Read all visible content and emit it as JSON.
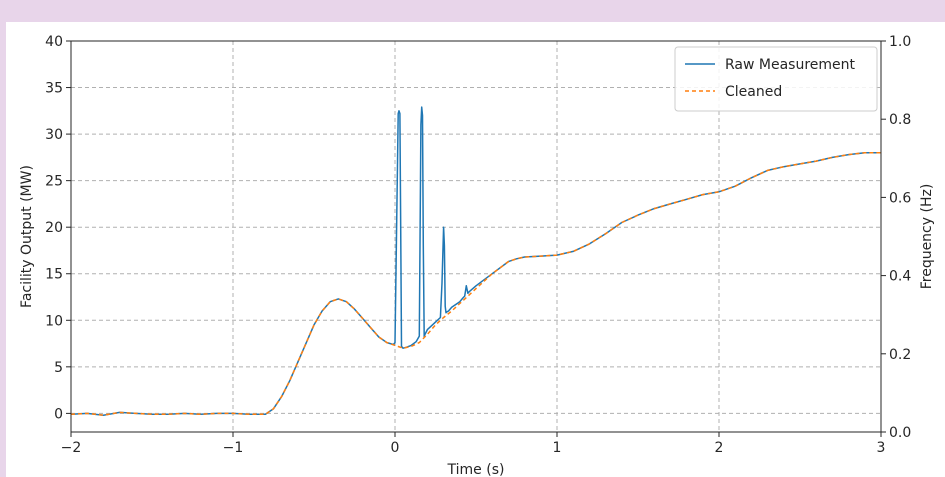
{
  "chart_data": {
    "type": "line",
    "title": "",
    "xlabel": "Time (s)",
    "ylabel": "Facility Output (MW)",
    "ylabel_right": "Frequency (Hz)",
    "xlim": [
      -2,
      3
    ],
    "ylim": [
      -2,
      40
    ],
    "ylim_right": [
      0.0,
      1.0
    ],
    "x_ticks": [
      -2,
      -1,
      0,
      1,
      2,
      3
    ],
    "x_tick_labels": [
      "−2",
      "−1",
      "0",
      "1",
      "2",
      "3"
    ],
    "y_ticks": [
      0,
      5,
      10,
      15,
      20,
      25,
      30,
      35,
      40
    ],
    "y_tick_labels": [
      "0",
      "5",
      "10",
      "15",
      "20",
      "25",
      "30",
      "35",
      "40"
    ],
    "y_right_ticks": [
      0.0,
      0.2,
      0.4,
      0.6,
      0.8,
      1.0
    ],
    "y_right_tick_labels": [
      "0.0",
      "0.2",
      "0.4",
      "0.6",
      "0.8",
      "1.0"
    ],
    "grid": true,
    "legend_position": "top-right",
    "series": [
      {
        "name": "Raw Measurement",
        "color": "#1f77b4",
        "style": "solid",
        "x": [
          -2.0,
          -1.9,
          -1.8,
          -1.7,
          -1.6,
          -1.5,
          -1.4,
          -1.3,
          -1.2,
          -1.1,
          -1.0,
          -0.9,
          -0.8,
          -0.75,
          -0.7,
          -0.65,
          -0.6,
          -0.55,
          -0.5,
          -0.45,
          -0.4,
          -0.35,
          -0.3,
          -0.25,
          -0.2,
          -0.15,
          -0.1,
          -0.05,
          -0.01,
          0.0,
          0.02,
          0.025,
          0.03,
          0.035,
          0.04,
          0.05,
          0.07,
          0.1,
          0.13,
          0.15,
          0.16,
          0.165,
          0.17,
          0.175,
          0.18,
          0.185,
          0.2,
          0.25,
          0.28,
          0.29,
          0.3,
          0.305,
          0.31,
          0.315,
          0.32,
          0.33,
          0.35,
          0.4,
          0.42,
          0.43,
          0.44,
          0.45,
          0.46,
          0.5,
          0.6,
          0.7,
          0.75,
          0.8,
          0.9,
          1.0,
          1.1,
          1.2,
          1.3,
          1.4,
          1.5,
          1.6,
          1.7,
          1.8,
          1.9,
          2.0,
          2.1,
          2.2,
          2.3,
          2.4,
          2.5,
          2.6,
          2.7,
          2.8,
          2.9,
          3.0
        ],
        "y": [
          -0.1,
          0.0,
          -0.2,
          0.1,
          0.0,
          -0.1,
          -0.1,
          0.0,
          -0.1,
          0.0,
          0.0,
          -0.1,
          -0.1,
          0.5,
          1.8,
          3.5,
          5.5,
          7.5,
          9.5,
          11.0,
          12.0,
          12.3,
          12.0,
          11.2,
          10.2,
          9.2,
          8.2,
          7.6,
          7.4,
          7.6,
          32.2,
          32.5,
          32.2,
          20.0,
          7.2,
          7.0,
          7.1,
          7.3,
          7.7,
          8.3,
          31.0,
          32.9,
          32.0,
          18.0,
          8.2,
          8.5,
          9.0,
          9.8,
          10.3,
          14.0,
          20.0,
          18.0,
          11.5,
          10.8,
          10.9,
          11.0,
          11.4,
          12.0,
          12.4,
          12.6,
          13.7,
          12.9,
          13.1,
          13.7,
          15.0,
          16.3,
          16.6,
          16.8,
          16.9,
          17.0,
          17.4,
          18.2,
          19.3,
          20.5,
          21.3,
          22.0,
          22.5,
          23.0,
          23.5,
          23.8,
          24.4,
          25.3,
          26.1,
          26.5,
          26.8,
          27.1,
          27.5,
          27.8,
          28.0,
          28.0
        ]
      },
      {
        "name": "Cleaned",
        "color": "#ff7f0e",
        "style": "dashed",
        "x": [
          -2.0,
          -1.9,
          -1.8,
          -1.7,
          -1.6,
          -1.5,
          -1.4,
          -1.3,
          -1.2,
          -1.1,
          -1.0,
          -0.9,
          -0.8,
          -0.75,
          -0.7,
          -0.65,
          -0.6,
          -0.55,
          -0.5,
          -0.45,
          -0.4,
          -0.35,
          -0.3,
          -0.25,
          -0.2,
          -0.15,
          -0.1,
          -0.05,
          0.0,
          0.05,
          0.1,
          0.15,
          0.2,
          0.25,
          0.3,
          0.35,
          0.4,
          0.45,
          0.5,
          0.6,
          0.7,
          0.75,
          0.8,
          0.9,
          1.0,
          1.1,
          1.2,
          1.3,
          1.4,
          1.5,
          1.6,
          1.7,
          1.8,
          1.9,
          2.0,
          2.1,
          2.2,
          2.3,
          2.4,
          2.5,
          2.6,
          2.7,
          2.8,
          2.9,
          3.0
        ],
        "y": [
          -0.1,
          0.0,
          -0.2,
          0.1,
          0.0,
          -0.1,
          -0.1,
          0.0,
          -0.1,
          0.0,
          0.0,
          -0.1,
          -0.1,
          0.5,
          1.8,
          3.5,
          5.5,
          7.5,
          9.5,
          11.0,
          12.0,
          12.3,
          12.0,
          11.2,
          10.2,
          9.2,
          8.2,
          7.6,
          7.3,
          7.0,
          7.2,
          7.6,
          8.5,
          9.5,
          10.3,
          11.0,
          11.8,
          12.6,
          13.4,
          15.0,
          16.3,
          16.6,
          16.8,
          16.9,
          17.0,
          17.4,
          18.2,
          19.3,
          20.5,
          21.3,
          22.0,
          22.5,
          23.0,
          23.5,
          23.8,
          24.4,
          25.3,
          26.1,
          26.5,
          26.8,
          27.1,
          27.5,
          27.8,
          28.0,
          28.0
        ]
      }
    ]
  }
}
